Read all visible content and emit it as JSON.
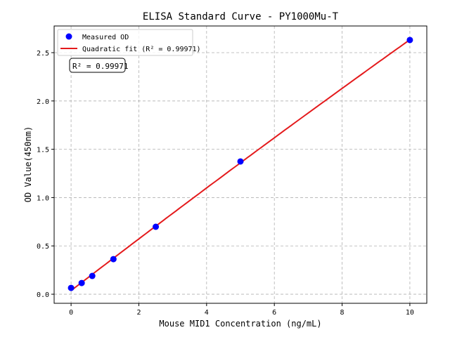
{
  "chart_data": {
    "type": "scatter",
    "title": "ELISA Standard Curve - PY1000Mu-T",
    "xlabel": "Mouse MID1 Concentration (ng/mL)",
    "ylabel": "OD Value(450nm)",
    "xlim": [
      -0.5,
      10.5
    ],
    "ylim": [
      -0.094,
      2.776
    ],
    "xticks": [
      0,
      2,
      4,
      6,
      8,
      10
    ],
    "yticks": [
      0.0,
      0.5,
      1.0,
      1.5,
      2.0,
      2.5
    ],
    "xtick_labels": [
      "0",
      "2",
      "4",
      "6",
      "8",
      "10"
    ],
    "ytick_labels": [
      "0.0",
      "0.5",
      "1.0",
      "1.5",
      "2.0",
      "2.5"
    ],
    "grid": true,
    "legend_position": "top-left",
    "series": [
      {
        "name": "Measured OD",
        "kind": "scatter",
        "color": "#0000ff",
        "x": [
          0,
          0.3125,
          0.625,
          1.25,
          2.5,
          5,
          10
        ],
        "y": [
          0.065,
          0.116,
          0.189,
          0.363,
          0.698,
          1.374,
          2.631
        ]
      },
      {
        "name": "Quadratic fit (R² = 0.99971)",
        "kind": "line",
        "color": "#e41a1c"
      }
    ],
    "annotation": "R² = 0.99971"
  }
}
